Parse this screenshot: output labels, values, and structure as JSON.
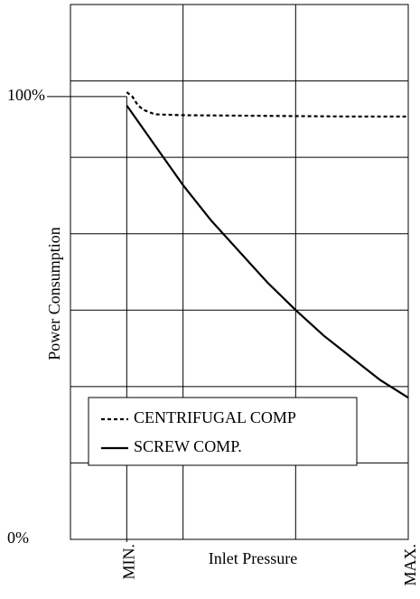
{
  "chart_data": {
    "type": "line",
    "xlabel": "Inlet Pressure",
    "ylabel": "Power Consumption",
    "series": [
      {
        "name": "CENTRIFUGAL COMP",
        "color": "#000000",
        "style": "dotted",
        "x": [
          0,
          2,
          4,
          6,
          8,
          10,
          20,
          40,
          60,
          80,
          100
        ],
        "values": [
          101,
          100,
          98,
          97,
          96.5,
          96,
          95.8,
          95.7,
          95.6,
          95.5,
          95.5
        ]
      },
      {
        "name": "SCREW COMP.",
        "color": "#000000",
        "style": "solid",
        "x": [
          0,
          10,
          20,
          30,
          40,
          50,
          60,
          70,
          80,
          90,
          100
        ],
        "values": [
          98,
          89,
          80,
          72,
          65,
          58,
          51.8,
          46,
          41,
          36,
          32
        ]
      }
    ],
    "xlim": [
      -20,
      100
    ],
    "ylim": [
      0,
      120.8
    ],
    "xticks": [
      {
        "value": 0,
        "label": "MIN."
      },
      {
        "value": 100,
        "label": "MAX."
      }
    ],
    "yticks": [
      {
        "value": 0,
        "label": "0%"
      },
      {
        "value": 100,
        "label": "100%"
      }
    ],
    "xgrid": [
      20,
      60
    ],
    "ygrid": [
      17.26,
      34.51,
      51.77,
      69.03,
      86.29,
      103.54
    ],
    "grid": true,
    "legend": "lower-left"
  }
}
